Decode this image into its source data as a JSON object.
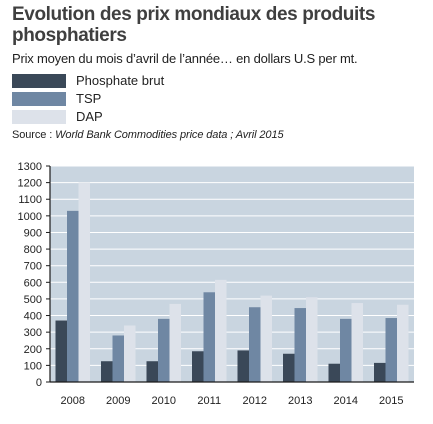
{
  "header": {
    "title": "Evolution des prix mondiaux des produits phosphatiers",
    "subtitle": "Prix moyen du mois d’avril de l’année… en dollars U.S per mt.",
    "source_label": "Source :",
    "source_text": "World Bank Commodities price data ; Avril 2015"
  },
  "chart_data": {
    "type": "bar",
    "title": "Evolution des prix mondiaux des produits phosphatiers",
    "subtitle": "Prix moyen du mois d’avril de l’année… en dollars U.S per mt.",
    "xlabel": "",
    "ylabel": "",
    "categories": [
      "2008",
      "2009",
      "2010",
      "2011",
      "2012",
      "2013",
      "2014",
      "2015"
    ],
    "series": [
      {
        "name": "Phosphate brut",
        "color": "#3a4858",
        "values": [
          370,
          125,
          125,
          185,
          190,
          170,
          110,
          115
        ]
      },
      {
        "name": "TSP",
        "color": "#6f87a3",
        "values": [
          1030,
          280,
          380,
          540,
          450,
          445,
          380,
          385
        ]
      },
      {
        "name": "DAP",
        "color": "#dde2ea",
        "values": [
          1200,
          340,
          470,
          615,
          520,
          510,
          475,
          465
        ]
      }
    ],
    "ylim": [
      0,
      1300
    ],
    "yticks": [
      0,
      100,
      200,
      300,
      400,
      500,
      600,
      700,
      800,
      900,
      1000,
      1100,
      1200,
      1300
    ],
    "grid": true,
    "legend": "top-left",
    "background": "#c9d5e0",
    "axis_color": "#1a1a1a"
  }
}
